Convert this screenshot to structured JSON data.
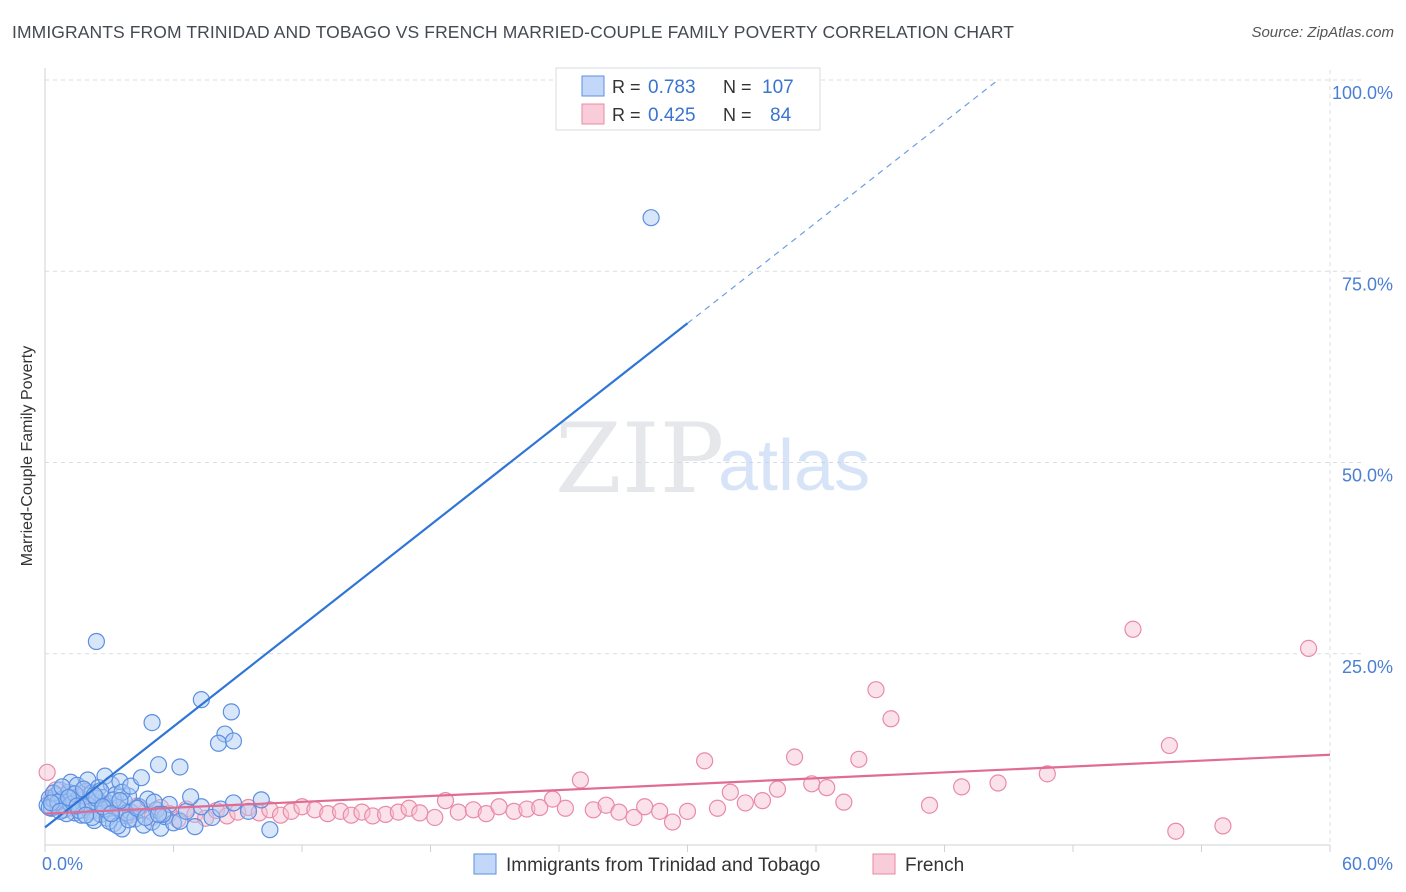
{
  "title": "IMMIGRANTS FROM TRINIDAD AND TOBAGO VS FRENCH MARRIED-COUPLE FAMILY POVERTY CORRELATION CHART",
  "source": "Source: ZipAtlas.com",
  "watermark": {
    "zip": "ZIP",
    "atlas": "atlas"
  },
  "colors": {
    "blue": "#5b8fe0",
    "blue_fill": "#a9c7f5",
    "blue_line": "#2f75d6",
    "pink": "#e98aa8",
    "pink_fill": "#f6bfd0",
    "pink_line": "#e06c93",
    "tick_text": "#4a7fd4",
    "grid": "#d9dde3"
  },
  "legend": {
    "rows": [
      {
        "r_label": "R =",
        "r_value": "0.783",
        "n_label": "N =",
        "n_value": "107"
      },
      {
        "r_label": "R =",
        "r_value": "0.425",
        "n_label": "N =",
        "n_value": "84"
      }
    ]
  },
  "chart_data": {
    "type": "scatter",
    "xlabel": "",
    "ylabel": "Married-Couple Family Poverty",
    "xlim": [
      0,
      60
    ],
    "ylim": [
      0,
      100
    ],
    "x_tick_labels": [
      "0.0%",
      "60.0%"
    ],
    "y_ticks": [
      25,
      50,
      75,
      100
    ],
    "y_tick_labels": [
      "25.0%",
      "50.0%",
      "75.0%",
      "100.0%"
    ],
    "legend_position": "bottom",
    "series": [
      {
        "name": "Immigrants from Trinidad and Tobago",
        "R": 0.783,
        "N": 107,
        "trend": {
          "x0": 0,
          "y0": 2.3,
          "x1": 30,
          "y1": 68.2,
          "dash_to_x": 44.5,
          "dash_to_y": 100
        },
        "points": [
          [
            0.1,
            5.2
          ],
          [
            0.2,
            6.1
          ],
          [
            0.3,
            4.8
          ],
          [
            0.4,
            5.9
          ],
          [
            0.5,
            6.5
          ],
          [
            0.6,
            5.0
          ],
          [
            0.7,
            7.2
          ],
          [
            0.8,
            6.0
          ],
          [
            0.9,
            4.6
          ],
          [
            1.0,
            5.8
          ],
          [
            1.1,
            6.9
          ],
          [
            1.2,
            8.2
          ],
          [
            1.3,
            5.5
          ],
          [
            1.4,
            4.2
          ],
          [
            1.5,
            7.8
          ],
          [
            1.6,
            6.3
          ],
          [
            1.7,
            3.9
          ],
          [
            1.8,
            5.1
          ],
          [
            1.9,
            7.0
          ],
          [
            2.0,
            8.5
          ],
          [
            2.1,
            4.4
          ],
          [
            2.2,
            6.8
          ],
          [
            2.3,
            3.2
          ],
          [
            2.4,
            5.6
          ],
          [
            2.5,
            7.5
          ],
          [
            2.6,
            4.0
          ],
          [
            2.7,
            6.2
          ],
          [
            2.8,
            9.0
          ],
          [
            2.9,
            3.5
          ],
          [
            3.0,
            5.4
          ],
          [
            3.1,
            7.9
          ],
          [
            3.2,
            2.8
          ],
          [
            3.3,
            6.6
          ],
          [
            3.4,
            4.9
          ],
          [
            3.5,
            8.3
          ],
          [
            3.6,
            2.1
          ],
          [
            3.7,
            5.7
          ],
          [
            3.8,
            3.8
          ],
          [
            3.9,
            6.4
          ],
          [
            4.0,
            4.3
          ],
          [
            0.2,
            4.9
          ],
          [
            0.4,
            6.8
          ],
          [
            0.6,
            5.6
          ],
          [
            0.8,
            7.6
          ],
          [
            1.0,
            4.1
          ],
          [
            1.2,
            5.3
          ],
          [
            1.4,
            6.7
          ],
          [
            1.6,
            4.5
          ],
          [
            1.8,
            7.3
          ],
          [
            2.0,
            5.2
          ],
          [
            2.2,
            3.6
          ],
          [
            2.4,
            6.1
          ],
          [
            2.6,
            7.1
          ],
          [
            2.8,
            4.7
          ],
          [
            3.0,
            3.1
          ],
          [
            3.2,
            5.9
          ],
          [
            3.4,
            2.5
          ],
          [
            3.6,
            6.9
          ],
          [
            3.8,
            4.2
          ],
          [
            4.0,
            7.7
          ],
          [
            4.2,
            3.4
          ],
          [
            4.4,
            5.0
          ],
          [
            4.6,
            2.6
          ],
          [
            4.8,
            6.0
          ],
          [
            5.0,
            3.0
          ],
          [
            5.2,
            4.6
          ],
          [
            5.4,
            2.2
          ],
          [
            5.6,
            3.7
          ],
          [
            5.8,
            5.3
          ],
          [
            6.0,
            2.9
          ],
          [
            0.3,
            5.5
          ],
          [
            0.7,
            4.4
          ],
          [
            1.1,
            6.2
          ],
          [
            1.5,
            5.1
          ],
          [
            1.9,
            3.9
          ],
          [
            2.3,
            6.5
          ],
          [
            2.7,
            5.0
          ],
          [
            3.1,
            4.1
          ],
          [
            3.5,
            5.8
          ],
          [
            3.9,
            3.3
          ],
          [
            4.3,
            4.8
          ],
          [
            4.7,
            3.6
          ],
          [
            5.1,
            5.6
          ],
          [
            5.5,
            4.0
          ],
          [
            6.3,
            3.1
          ],
          [
            6.6,
            4.4
          ],
          [
            7.0,
            2.4
          ],
          [
            7.3,
            5.0
          ],
          [
            7.8,
            3.6
          ],
          [
            8.2,
            4.7
          ],
          [
            8.8,
            5.5
          ],
          [
            9.5,
            4.4
          ],
          [
            10.1,
            5.9
          ],
          [
            10.5,
            2.0
          ],
          [
            6.8,
            6.3
          ],
          [
            4.5,
            8.8
          ],
          [
            5.3,
            10.5
          ],
          [
            6.3,
            10.2
          ],
          [
            5.0,
            16.0
          ],
          [
            7.3,
            19.0
          ],
          [
            8.7,
            17.4
          ],
          [
            8.4,
            14.5
          ],
          [
            8.1,
            13.3
          ],
          [
            8.8,
            13.6
          ],
          [
            5.3,
            4.0
          ],
          [
            2.4,
            26.6
          ],
          [
            28.3,
            82.0
          ]
        ]
      },
      {
        "name": "French",
        "R": 0.425,
        "N": 84,
        "trend": {
          "x0": 0,
          "y0": 4.1,
          "x1": 60,
          "y1": 11.8
        },
        "points": [
          [
            0.1,
            9.5
          ],
          [
            0.3,
            6.0
          ],
          [
            0.5,
            7.2
          ],
          [
            0.8,
            5.0
          ],
          [
            1.0,
            6.5
          ],
          [
            1.3,
            4.8
          ],
          [
            1.6,
            5.9
          ],
          [
            2.0,
            6.8
          ],
          [
            2.3,
            4.5
          ],
          [
            2.6,
            5.6
          ],
          [
            3.0,
            4.2
          ],
          [
            3.3,
            5.3
          ],
          [
            3.6,
            4.6
          ],
          [
            4.0,
            3.9
          ],
          [
            4.3,
            5.1
          ],
          [
            4.7,
            4.4
          ],
          [
            5.0,
            3.6
          ],
          [
            5.4,
            4.9
          ],
          [
            5.8,
            4.1
          ],
          [
            6.2,
            3.3
          ],
          [
            6.6,
            4.7
          ],
          [
            7.0,
            4.0
          ],
          [
            7.5,
            3.5
          ],
          [
            8.0,
            4.5
          ],
          [
            8.5,
            3.8
          ],
          [
            9.0,
            4.3
          ],
          [
            9.5,
            4.9
          ],
          [
            10.0,
            4.2
          ],
          [
            10.5,
            4.6
          ],
          [
            11.0,
            3.9
          ],
          [
            11.5,
            4.4
          ],
          [
            12.0,
            5.0
          ],
          [
            12.6,
            4.6
          ],
          [
            13.2,
            4.1
          ],
          [
            13.8,
            4.4
          ],
          [
            14.3,
            3.9
          ],
          [
            14.8,
            4.3
          ],
          [
            15.3,
            3.8
          ],
          [
            15.9,
            4.0
          ],
          [
            16.5,
            4.3
          ],
          [
            17.0,
            4.8
          ],
          [
            17.5,
            4.2
          ],
          [
            18.2,
            3.6
          ],
          [
            18.7,
            5.8
          ],
          [
            19.3,
            4.3
          ],
          [
            20.0,
            4.6
          ],
          [
            20.6,
            4.1
          ],
          [
            21.2,
            5.0
          ],
          [
            21.9,
            4.4
          ],
          [
            22.5,
            4.7
          ],
          [
            23.1,
            4.9
          ],
          [
            23.7,
            6.0
          ],
          [
            24.3,
            4.8
          ],
          [
            25.0,
            8.5
          ],
          [
            25.6,
            4.6
          ],
          [
            26.2,
            5.2
          ],
          [
            26.8,
            4.3
          ],
          [
            27.5,
            3.6
          ],
          [
            28.0,
            5.0
          ],
          [
            28.7,
            4.4
          ],
          [
            29.3,
            3.0
          ],
          [
            30.0,
            4.4
          ],
          [
            30.8,
            11.0
          ],
          [
            31.4,
            4.8
          ],
          [
            32.0,
            6.9
          ],
          [
            32.7,
            5.5
          ],
          [
            33.5,
            5.8
          ],
          [
            34.2,
            7.3
          ],
          [
            35.0,
            11.5
          ],
          [
            35.8,
            8.0
          ],
          [
            36.5,
            7.5
          ],
          [
            37.3,
            5.6
          ],
          [
            38.0,
            11.2
          ],
          [
            38.8,
            20.3
          ],
          [
            39.5,
            16.5
          ],
          [
            41.3,
            5.2
          ],
          [
            42.8,
            7.6
          ],
          [
            44.5,
            8.1
          ],
          [
            46.8,
            9.3
          ],
          [
            50.8,
            28.2
          ],
          [
            52.5,
            13.0
          ],
          [
            55.0,
            2.5
          ],
          [
            59.0,
            25.7
          ],
          [
            52.8,
            1.8
          ]
        ]
      }
    ]
  }
}
